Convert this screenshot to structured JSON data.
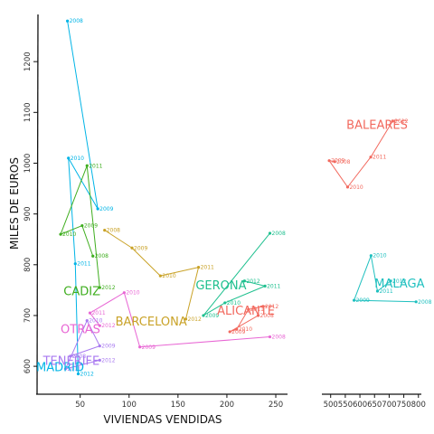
{
  "chart_data": {
    "type": "line",
    "xlabel": "VIVIENDAS VENDIDAS",
    "ylabel": "MILES DE EUROS",
    "x_panels": [
      {
        "xlim": [
          5,
          262
        ],
        "ticks": [
          50,
          100,
          150,
          200,
          250
        ]
      },
      {
        "xlim": [
          470,
          810
        ],
        "ticks": [
          500,
          550,
          600,
          650,
          700,
          750,
          800
        ]
      }
    ],
    "ylim": [
      545,
      1300
    ],
    "y_ticks": [
      600,
      700,
      800,
      900,
      1000,
      1100,
      1200
    ],
    "series": [
      {
        "name": "MADRID",
        "color": "#00b4e6",
        "panel": 0,
        "label_pos": [
          5,
          590
        ],
        "label_anchor": "start",
        "points": [
          {
            "x": 37,
            "y": 1280,
            "year": "2008"
          },
          {
            "x": 68,
            "y": 910,
            "year": "2009"
          },
          {
            "x": 38,
            "y": 1010,
            "year": "2010"
          },
          {
            "x": 45,
            "y": 802,
            "year": "2011"
          },
          {
            "x": 48,
            "y": 585,
            "year": "2012"
          }
        ]
      },
      {
        "name": "CADIZ",
        "color": "#3fae1f",
        "panel": 0,
        "label_pos": [
          33,
          740
        ],
        "label_anchor": "start",
        "points": [
          {
            "x": 63,
            "y": 817,
            "year": "2008"
          },
          {
            "x": 52,
            "y": 877,
            "year": "2009"
          },
          {
            "x": 30,
            "y": 860,
            "year": "2010"
          },
          {
            "x": 57,
            "y": 995,
            "year": "2011"
          },
          {
            "x": 70,
            "y": 755,
            "year": "2012"
          }
        ]
      },
      {
        "name": "BARCELONA",
        "color": "#c9a227",
        "panel": 0,
        "label_pos": [
          86,
          680
        ],
        "label_anchor": "start",
        "points": [
          {
            "x": 75,
            "y": 868,
            "year": "2008"
          },
          {
            "x": 103,
            "y": 833,
            "year": "2009"
          },
          {
            "x": 132,
            "y": 778,
            "year": "2010"
          },
          {
            "x": 171,
            "y": 795,
            "year": "2011"
          },
          {
            "x": 158,
            "y": 693,
            "year": "2012"
          }
        ]
      },
      {
        "name": "OTRAS",
        "color": "#e866d4",
        "panel": 0,
        "label_pos": [
          30,
          665
        ],
        "label_anchor": "start",
        "points": [
          {
            "x": 244,
            "y": 658,
            "year": "2008"
          },
          {
            "x": 111,
            "y": 638,
            "year": "2009"
          },
          {
            "x": 95,
            "y": 745,
            "year": "2010"
          },
          {
            "x": 60,
            "y": 705,
            "year": "2011"
          },
          {
            "x": 70,
            "y": 680,
            "year": "2012"
          }
        ]
      },
      {
        "name": "TENERIFE",
        "color": "#a97af0",
        "panel": 0,
        "label_pos": [
          12,
          603
        ],
        "label_anchor": "start",
        "points": [
          {
            "x": 40,
            "y": 620,
            "year": "2008"
          },
          {
            "x": 70,
            "y": 640,
            "year": "2009"
          },
          {
            "x": 57,
            "y": 690,
            "year": "2010"
          },
          {
            "x": 35,
            "y": 595,
            "year": "2011"
          },
          {
            "x": 70,
            "y": 612,
            "year": "2012"
          }
        ]
      },
      {
        "name": "GERONA",
        "color": "#1fc08f",
        "panel": 0,
        "label_pos": [
          168,
          752
        ],
        "label_anchor": "start",
        "points": [
          {
            "x": 244,
            "y": 862,
            "year": "2008"
          },
          {
            "x": 176,
            "y": 700,
            "year": "2009"
          },
          {
            "x": 198,
            "y": 725,
            "year": "2010"
          },
          {
            "x": 239,
            "y": 758,
            "year": "2011"
          },
          {
            "x": 218,
            "y": 768,
            "year": "2012"
          }
        ]
      },
      {
        "name": "ALICANTE",
        "color": "#f2695e",
        "panel": 0,
        "label_pos": [
          190,
          702
        ],
        "label_anchor": "start",
        "points": [
          {
            "x": 232,
            "y": 700,
            "year": "2008"
          },
          {
            "x": 203,
            "y": 668,
            "year": "2009"
          },
          {
            "x": 210,
            "y": 673,
            "year": "2010"
          },
          {
            "x": 222,
            "y": 712,
            "year": "2011"
          },
          {
            "x": 237,
            "y": 718,
            "year": "2012"
          }
        ]
      },
      {
        "name": "BALEARES",
        "color": "#f2695e",
        "panel": 1,
        "label_pos": [
          554,
          1068
        ],
        "label_anchor": "start",
        "points": [
          {
            "x": 514,
            "y": 1003,
            "year": "2008"
          },
          {
            "x": 495,
            "y": 1005,
            "year": "2009"
          },
          {
            "x": 558,
            "y": 953,
            "year": "2010"
          },
          {
            "x": 637,
            "y": 1012,
            "year": "2011"
          },
          {
            "x": 712,
            "y": 1083,
            "year": "2012"
          }
        ]
      },
      {
        "name": "MALAGA",
        "color": "#1fc0bf",
        "panel": 1,
        "label_pos": [
          650,
          755
        ],
        "label_anchor": "start",
        "points": [
          {
            "x": 792,
            "y": 727,
            "year": "2008"
          },
          {
            "x": 580,
            "y": 730,
            "year": "2009"
          },
          {
            "x": 638,
            "y": 818,
            "year": "2010"
          },
          {
            "x": 660,
            "y": 748,
            "year": "2011"
          },
          {
            "x": 705,
            "y": 768,
            "year": "2012"
          }
        ]
      }
    ]
  }
}
